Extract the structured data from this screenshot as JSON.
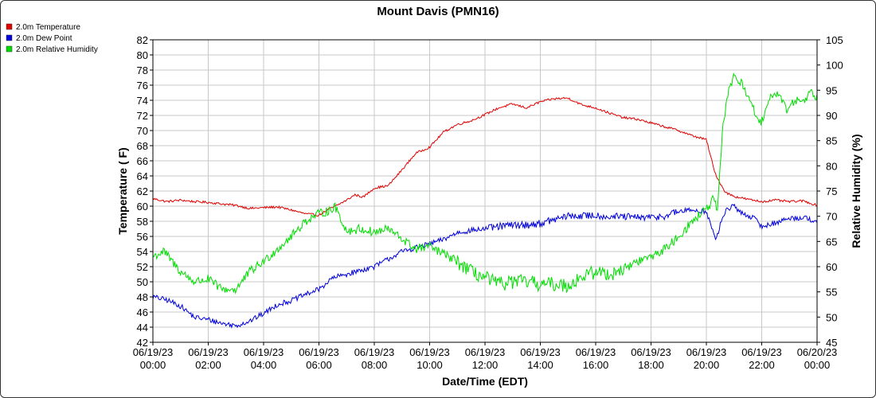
{
  "chart_data": {
    "type": "line",
    "title": "Mount Davis (PMN16)",
    "xlabel": "Date/Time (EDT)",
    "ylabel": "Temperature ( F)",
    "y2label": "Relative Humidity (%)",
    "ylim": [
      42,
      82
    ],
    "y2lim": [
      45,
      105
    ],
    "yticks": [
      "42",
      "44",
      "46",
      "48",
      "50",
      "52",
      "54",
      "56",
      "58",
      "60",
      "62",
      "64",
      "66",
      "68",
      "70",
      "72",
      "74",
      "76",
      "78",
      "80",
      "82"
    ],
    "y2ticks": [
      "45",
      "50",
      "55",
      "60",
      "65",
      "70",
      "75",
      "80",
      "85",
      "90",
      "95",
      "100",
      "105"
    ],
    "xrange_hours": [
      0,
      24
    ],
    "xticks": [
      {
        "date": "06/19/23",
        "time": "00:00"
      },
      {
        "date": "06/19/23",
        "time": "02:00"
      },
      {
        "date": "06/19/23",
        "time": "04:00"
      },
      {
        "date": "06/19/23",
        "time": "06:00"
      },
      {
        "date": "06/19/23",
        "time": "08:00"
      },
      {
        "date": "06/19/23",
        "time": "10:00"
      },
      {
        "date": "06/19/23",
        "time": "12:00"
      },
      {
        "date": "06/19/23",
        "time": "14:00"
      },
      {
        "date": "06/19/23",
        "time": "16:00"
      },
      {
        "date": "06/19/23",
        "time": "18:00"
      },
      {
        "date": "06/19/23",
        "time": "20:00"
      },
      {
        "date": "06/19/23",
        "time": "22:00"
      },
      {
        "date": "06/20/23",
        "time": "00:00"
      }
    ],
    "grid": true,
    "legend_position": "top-left",
    "series": [
      {
        "name": "2.0m Temperature",
        "color": "#e00000",
        "axis": "left",
        "x": [
          0,
          0.5,
          1,
          1.5,
          2,
          2.5,
          3,
          3.5,
          4,
          4.5,
          5,
          5.5,
          6,
          6.3,
          6.6,
          7,
          7.3,
          7.6,
          8,
          8.5,
          9,
          9.5,
          10,
          10.5,
          11,
          11.5,
          12,
          12.5,
          13,
          13.5,
          14,
          14.5,
          15,
          15.5,
          16,
          16.5,
          17,
          17.5,
          18,
          18.5,
          19,
          19.5,
          20,
          20.3,
          20.5,
          20.7,
          21,
          21.5,
          22,
          22.5,
          23,
          23.5,
          24
        ],
        "y": [
          61,
          60.6,
          60.8,
          60.6,
          60.5,
          60.3,
          60.1,
          59.7,
          59.8,
          59.9,
          59.5,
          59,
          58.8,
          59.5,
          60,
          60.8,
          61.5,
          61.2,
          62.4,
          62.7,
          64.8,
          67,
          67.8,
          69.8,
          70.8,
          71.3,
          72.1,
          73,
          73.5,
          73,
          73.8,
          74.2,
          74.3,
          73.4,
          73,
          72.3,
          71.7,
          71.5,
          71,
          70.5,
          70,
          69.3,
          68.8,
          64.5,
          63,
          61.8,
          61.3,
          60.9,
          60.6,
          60.8,
          60.6,
          60.7,
          60.1
        ]
      },
      {
        "name": "2.0m Dew Point",
        "color": "#0000dd",
        "axis": "left",
        "x": [
          0,
          0.5,
          1,
          1.5,
          2,
          2.5,
          3,
          3.5,
          4,
          4.5,
          5,
          5.5,
          6,
          6.5,
          7,
          7.5,
          8,
          8.5,
          9,
          9.5,
          10,
          10.5,
          11,
          11.5,
          12,
          12.5,
          13,
          13.5,
          14,
          14.5,
          15,
          15.5,
          16,
          16.5,
          17,
          17.5,
          18,
          18.5,
          19,
          19.5,
          20,
          20.2,
          20.35,
          20.5,
          20.7,
          21,
          21.3,
          21.7,
          22,
          22.5,
          23,
          23.5,
          24
        ],
        "y": [
          48,
          47.6,
          46.8,
          45.3,
          45,
          44.5,
          44.2,
          44.8,
          45.8,
          47,
          47.5,
          48.3,
          49,
          50.5,
          51,
          51.5,
          52,
          53,
          54,
          54.5,
          55,
          55.6,
          56.5,
          56.8,
          57,
          57.3,
          57.5,
          57.5,
          57.7,
          58.2,
          58.7,
          58.7,
          58.8,
          58.6,
          58.6,
          58.5,
          58.5,
          58.7,
          59.3,
          59.5,
          59.3,
          57,
          55.5,
          57.5,
          59.5,
          60,
          59,
          58.5,
          57.3,
          57.8,
          58.4,
          58.5,
          58
        ]
      },
      {
        "name": "2.0m Relative Humidity",
        "color": "#00dd00",
        "axis": "right",
        "x": [
          0,
          0.4,
          1,
          1.5,
          2,
          2.5,
          3,
          3.5,
          4,
          4.5,
          5,
          5.5,
          6,
          6.3,
          6.6,
          7,
          7.5,
          8,
          8.5,
          9,
          9.5,
          10,
          10.5,
          11,
          11.5,
          12,
          12.5,
          13,
          13.5,
          14,
          14.5,
          15,
          15.5,
          16,
          16.5,
          17,
          17.5,
          18,
          18.5,
          19,
          19.5,
          19.9,
          20.1,
          20.25,
          20.4,
          20.6,
          20.8,
          21,
          21.3,
          21.6,
          21.9,
          22.1,
          22.4,
          22.6,
          22.9,
          23.2,
          23.5,
          23.8,
          24
        ],
        "y": [
          62,
          63,
          59,
          57,
          57.5,
          55.5,
          55.5,
          59,
          61,
          63.5,
          66,
          69,
          70.5,
          71,
          71.8,
          67,
          67.5,
          66.8,
          67.5,
          65.5,
          63.5,
          64,
          62.5,
          61,
          59,
          57.8,
          56.5,
          57,
          57,
          56.5,
          56.5,
          56.3,
          58,
          59,
          58.5,
          59.5,
          61,
          62,
          63.5,
          66,
          69,
          71,
          72,
          73.5,
          71,
          88,
          95,
          98,
          96,
          93,
          88,
          90,
          94.5,
          94.5,
          91,
          93,
          93,
          94.8,
          93.5
        ]
      }
    ]
  }
}
